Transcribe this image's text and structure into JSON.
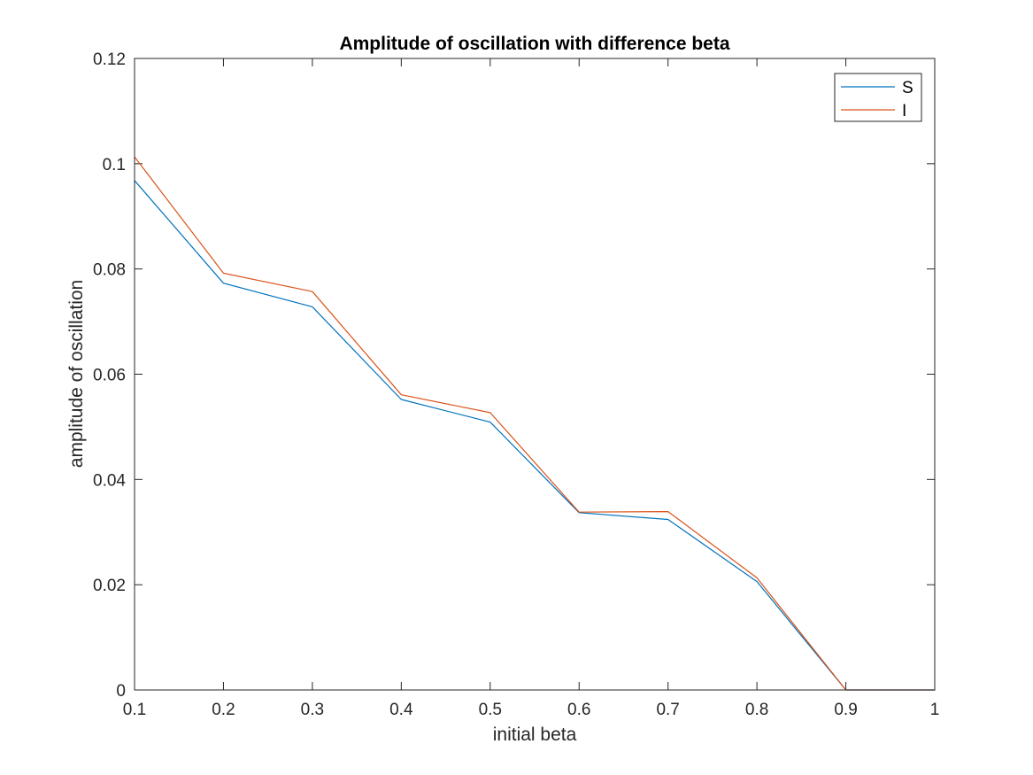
{
  "chart_data": {
    "type": "line",
    "title": "Amplitude of oscillation with difference beta",
    "xlabel": "initial beta",
    "ylabel": "amplitude of oscillation",
    "xlim": [
      0.1,
      1
    ],
    "ylim": [
      0,
      0.12
    ],
    "grid": false,
    "legend_position": "top-right",
    "x": [
      0.1,
      0.2,
      0.3,
      0.4,
      0.5,
      0.6,
      0.7,
      0.8,
      0.9,
      1.0
    ],
    "xticks": [
      0.1,
      0.2,
      0.3,
      0.4,
      0.5,
      0.6,
      0.7,
      0.8,
      0.9,
      1
    ],
    "xtick_labels": [
      "0.1",
      "0.2",
      "0.3",
      "0.4",
      "0.5",
      "0.6",
      "0.7",
      "0.8",
      "0.9",
      "1"
    ],
    "yticks": [
      0,
      0.02,
      0.04,
      0.06,
      0.08,
      0.1,
      0.12
    ],
    "ytick_labels": [
      "0",
      "0.02",
      "0.04",
      "0.06",
      "0.08",
      "0.1",
      "0.12"
    ],
    "series": [
      {
        "name": "S",
        "color": "#0072BD",
        "values": [
          0.0968,
          0.0773,
          0.0728,
          0.0552,
          0.0509,
          0.0337,
          0.0324,
          0.0206,
          0.0,
          0.0
        ]
      },
      {
        "name": "I",
        "color": "#D95319",
        "values": [
          0.1013,
          0.0792,
          0.0757,
          0.0561,
          0.0527,
          0.0338,
          0.0339,
          0.0213,
          0.0,
          0.0
        ]
      }
    ]
  }
}
